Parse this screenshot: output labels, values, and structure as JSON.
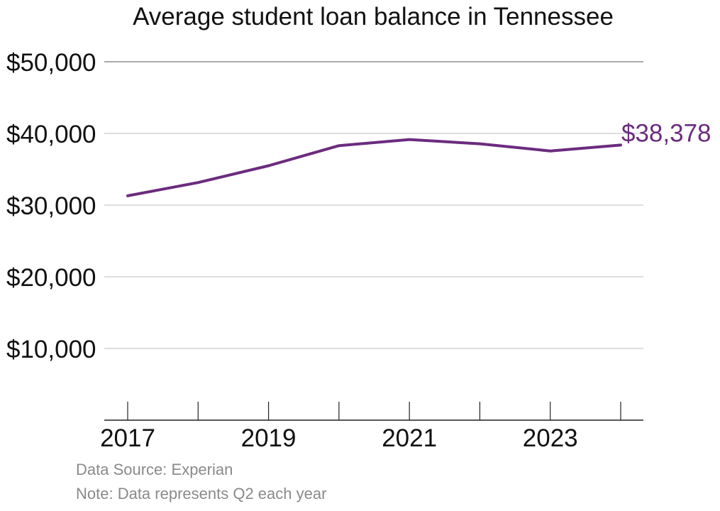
{
  "chart_data": {
    "type": "line",
    "title": "Average student loan balance in Tennessee",
    "xlabel": "",
    "ylabel": "",
    "x": [
      2017,
      2018,
      2019,
      2020,
      2021,
      2022,
      2023,
      2024
    ],
    "series": [
      {
        "values": [
          31300,
          33150,
          35500,
          38300,
          39150,
          38550,
          37550,
          38378
        ],
        "color": "#6b2c7e"
      }
    ],
    "ylim": [
      0,
      50000
    ],
    "yticks": [
      10000,
      20000,
      30000,
      40000,
      50000
    ],
    "ytick_labels": [
      "$10,000",
      "$20,000",
      "$30,000",
      "$40,000",
      "$50,000"
    ],
    "xticks_labeled": [
      2017,
      2019,
      2021,
      2023
    ],
    "xtick_labels": [
      "2017",
      "2019",
      "2021",
      "2023"
    ],
    "end_label": "$38,378",
    "grid": true,
    "legend": "none"
  },
  "footer": {
    "source": "Data Source: Experian",
    "note": "Note: Data represents Q2 each year"
  },
  "colors": {
    "line": "#6b2c7e",
    "grid": "#bdbdbd",
    "text": "#111111",
    "muted": "#8a8a8a"
  }
}
